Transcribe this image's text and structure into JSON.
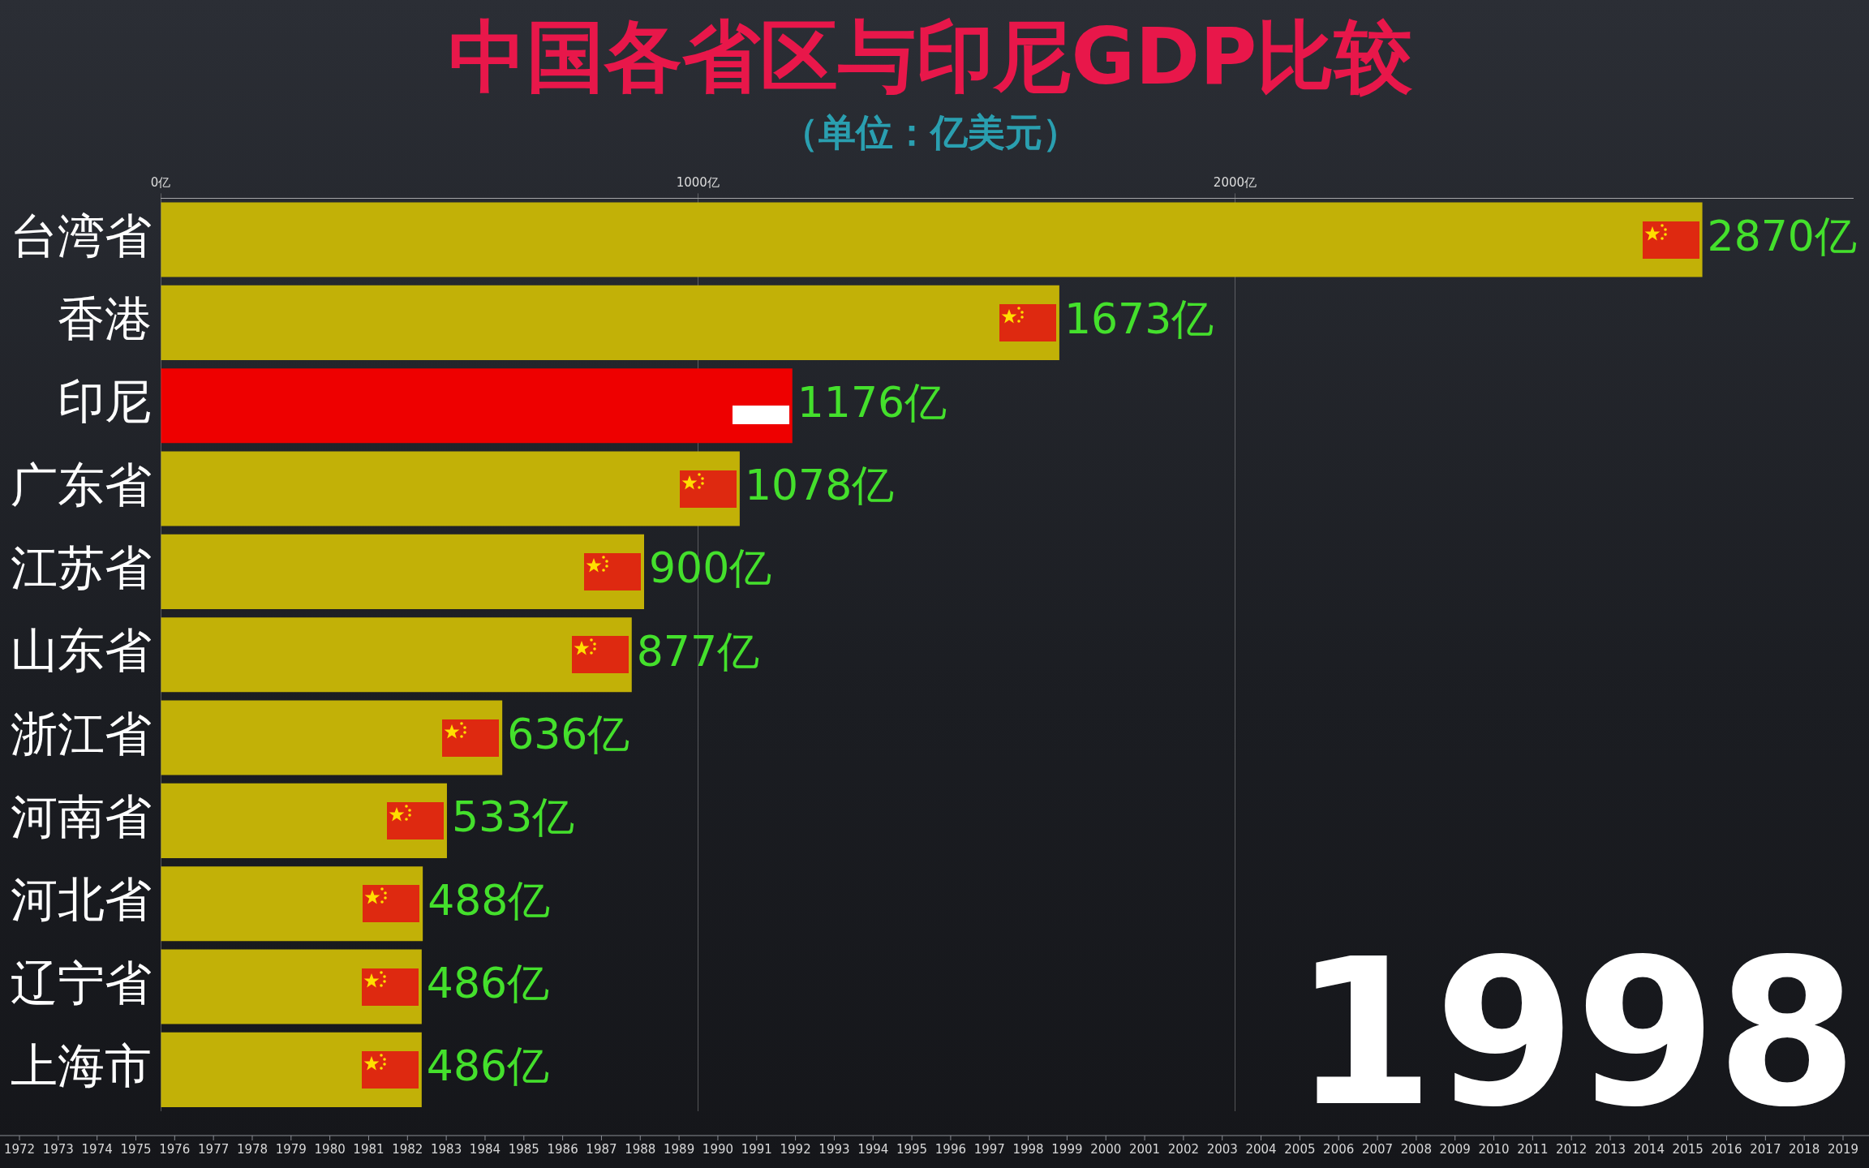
{
  "chart_data": {
    "type": "bar",
    "orientation": "horizontal",
    "title": "中国各省区与印尼GDP比较",
    "subtitle": "（单位：亿美元）",
    "categories": [
      "台湾省",
      "香港",
      "印尼",
      "广东省",
      "江苏省",
      "山东省",
      "浙江省",
      "河南省",
      "河北省",
      "辽宁省",
      "上海市"
    ],
    "values": [
      2870,
      1673,
      1176,
      1078,
      900,
      877,
      636,
      533,
      488,
      486,
      486
    ],
    "colors": [
      "#c2b107",
      "#c2b107",
      "#ee0000",
      "#c2b107",
      "#c2b107",
      "#c2b107",
      "#c2b107",
      "#c2b107",
      "#c2b107",
      "#c2b107",
      "#c2b107"
    ],
    "value_labels": [
      "2870亿",
      "1673亿",
      "1176亿",
      "1078亿",
      "900亿",
      "877亿",
      "636亿",
      "533亿",
      "488亿",
      "486亿",
      "486亿"
    ],
    "xlim": [
      0,
      3150
    ],
    "xticks": [
      {
        "value": 0,
        "label": "0亿"
      },
      {
        "value": 1000,
        "label": "1000亿"
      },
      {
        "value": 2000,
        "label": "2000亿"
      }
    ],
    "grid": "x",
    "legend": false,
    "annotations": [
      "1998",
      "1972",
      "1973",
      "1974",
      "1975",
      "1976",
      "1977",
      "1978",
      "1979",
      "1980",
      "1981",
      "1982",
      "1983",
      "1984",
      "1985",
      "1986",
      "1987",
      "1988",
      "1989",
      "1990",
      "1991",
      "1992",
      "1993",
      "1994",
      "1995",
      "1996",
      "1997",
      "1998",
      "1999",
      "2000",
      "2001",
      "2002",
      "2003",
      "2004",
      "2005",
      "2006",
      "2007",
      "2008",
      "2009",
      "2010",
      "2011",
      "2012",
      "2013",
      "2014",
      "2015",
      "2016",
      "2017",
      "2018",
      "2019"
    ]
  }
}
